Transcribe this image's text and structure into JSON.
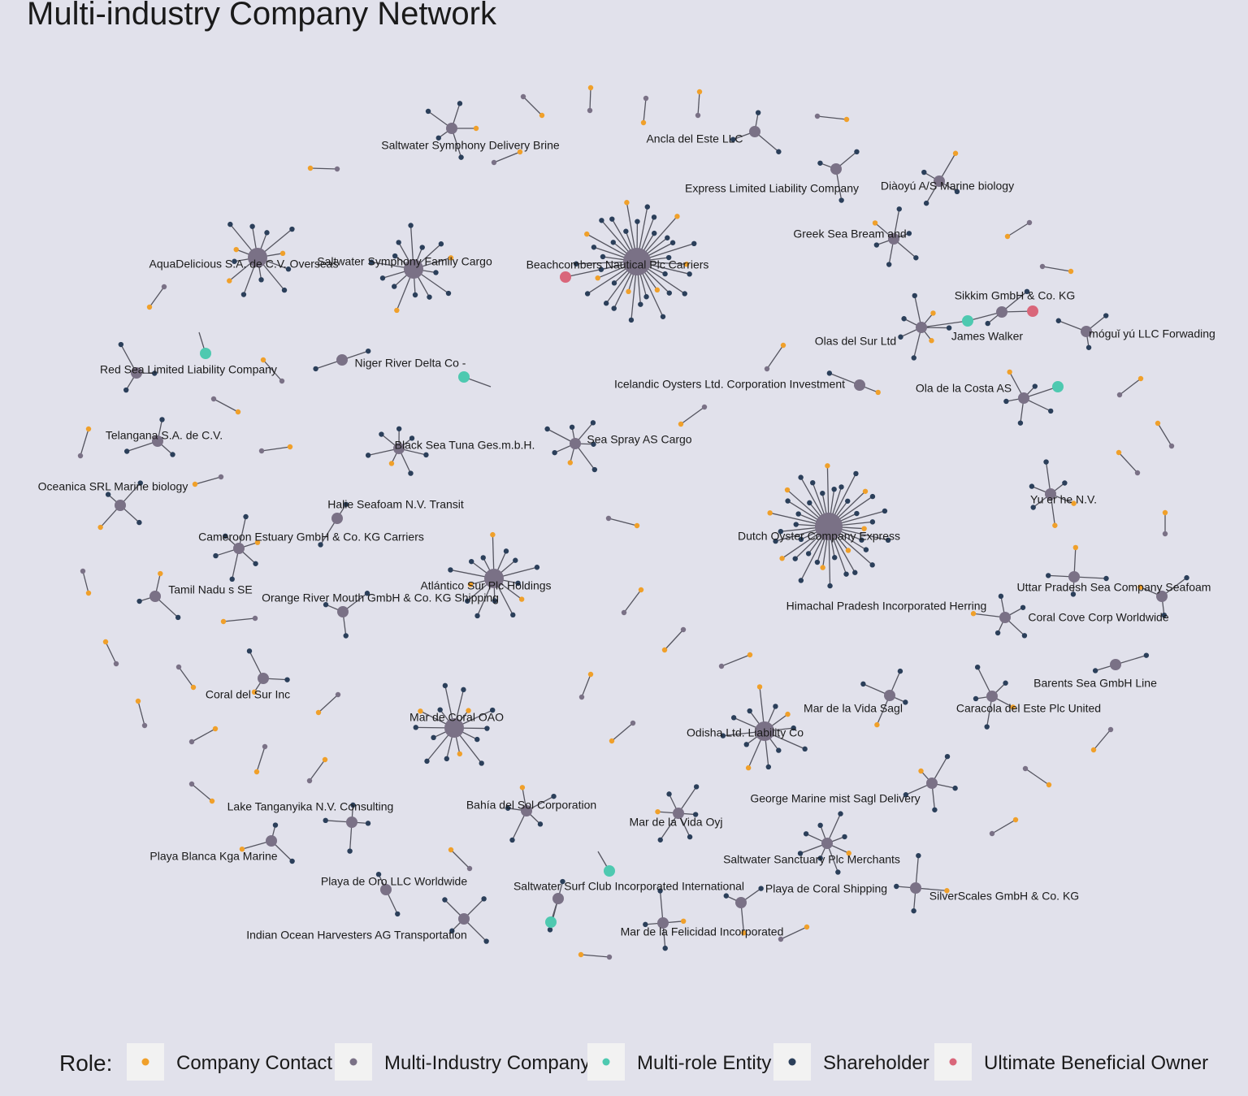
{
  "title": "Multi-industry Company Network",
  "legend": {
    "title": "Role:",
    "items": [
      {
        "label": "Company Contact",
        "color": "#f0a02a"
      },
      {
        "label": "Multi-Industry Company",
        "color": "#7a7186"
      },
      {
        "label": "Multi-role Entity",
        "color": "#4ec9b0"
      },
      {
        "label": "Shareholder",
        "color": "#2b3f5a"
      },
      {
        "label": "Ultimate Beneficial Owner",
        "color": "#d9667a"
      }
    ]
  },
  "nodes": [
    {
      "label": "Saltwater Symphony Delivery Brine"
    },
    {
      "label": "Ancla del Este LLC"
    },
    {
      "label": "Express Limited Liability Company"
    },
    {
      "label": "Diàoyú A/S Marine biology"
    },
    {
      "label": "Greek Sea Bream and"
    },
    {
      "label": "AquaDelicious S.A. de C.V. Overseas"
    },
    {
      "label": "Saltwater Symphony Family Cargo"
    },
    {
      "label": "Beachcombers Nautical Plc Carriers"
    },
    {
      "label": "Sikkim  GmbH & Co. KG"
    },
    {
      "label": "Olas del Sur Ltd"
    },
    {
      "label": "James Walker"
    },
    {
      "label": "móguǐ yú LLC Forwading"
    },
    {
      "label": "Red Sea  Limited Liability Company"
    },
    {
      "label": "Niger River Delta  Co -"
    },
    {
      "label": "Icelandic Oysters Ltd. Corporation Investment"
    },
    {
      "label": "Ola de la Costa AS"
    },
    {
      "label": "Telangana  S.A. de C.V."
    },
    {
      "label": "Black Sea Tuna Ges.m.b.H."
    },
    {
      "label": "Sea Spray AS Cargo"
    },
    {
      "label": "Oceanica SRL Marine biology"
    },
    {
      "label": "Yu er he  N.V."
    },
    {
      "label": "Halie Seafoam N.V. Transit"
    },
    {
      "label": "Cameroon Estuary  GmbH & Co. KG Carriers"
    },
    {
      "label": "Dutch Oyster Company Express"
    },
    {
      "label": "Atlántico Sur Plc Holdings"
    },
    {
      "label": "Tamil Nadu s SE"
    },
    {
      "label": "Orange River Mouth   GmbH & Co. KG Shipping"
    },
    {
      "label": "Uttar Pradesh Sea  Company Seafoam"
    },
    {
      "label": "Himachal Pradesh   Incorporated Herring"
    },
    {
      "label": "Coral Cove Corp Worldwide"
    },
    {
      "label": "Coral del Sur Inc"
    },
    {
      "label": "Barents Sea  GmbH Line"
    },
    {
      "label": "Mar de la Vida Sagl"
    },
    {
      "label": "Caracola del Este Plc United"
    },
    {
      "label": "Mar de Coral OAO"
    },
    {
      "label": "Odisha  Ltd. Liability Co"
    },
    {
      "label": "Lake Tanganyika  N.V. Consulting"
    },
    {
      "label": "Bahía del Sol Corporation"
    },
    {
      "label": "George Marine mist Sagl Delivery"
    },
    {
      "label": "Mar de la Vida Oyj"
    },
    {
      "label": "Playa Blanca Kga Marine"
    },
    {
      "label": "Saltwater Sanctuary Plc Merchants"
    },
    {
      "label": "Playa de Oro LLC Worldwide"
    },
    {
      "label": "Saltwater Surf Club Incorporated International"
    },
    {
      "label": "Playa de Coral Shipping"
    },
    {
      "label": "SilverScales GmbH & Co. KG"
    },
    {
      "label": "Indian Ocean Harvesters AG Transportation"
    },
    {
      "label": "Mar de la Felicidad Incorporated"
    }
  ]
}
